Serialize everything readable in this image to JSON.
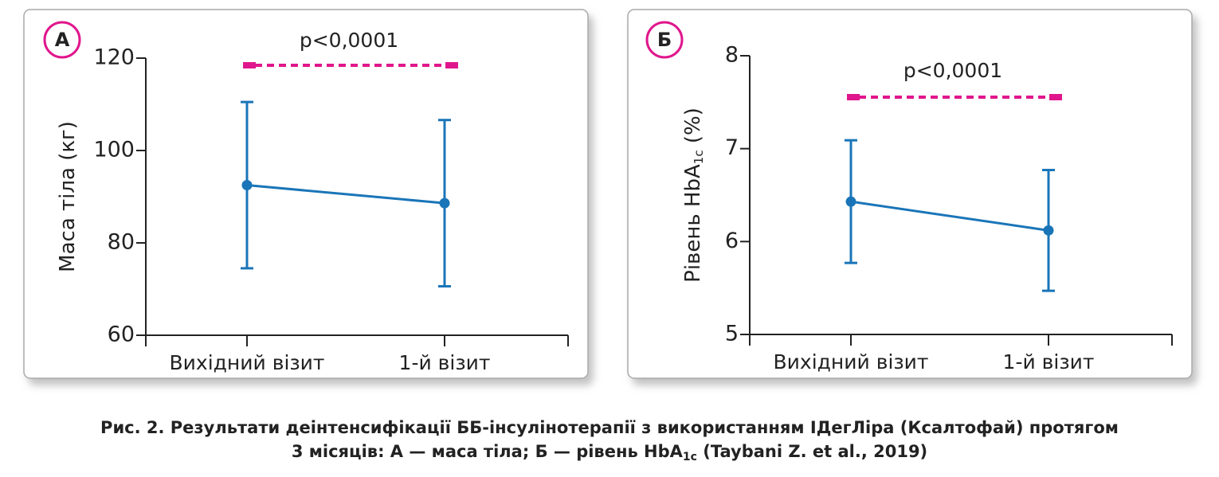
{
  "chart_data": [
    {
      "type": "line",
      "panel": "А",
      "annotation": "p<0,0001",
      "ylabel": [
        "Маса тіла (кг)"
      ],
      "categories": [
        "Вихідний візит",
        "1-й візит"
      ],
      "values": [
        92.5,
        88.6
      ],
      "errors": [
        18,
        18
      ],
      "color": "#1a75b8",
      "ylim": [
        60,
        120
      ],
      "yticks": [
        60,
        80,
        100,
        120
      ]
    },
    {
      "type": "line",
      "panel": "Б",
      "annotation": "p<0,0001",
      "ylabel": [
        "Рівень HbA",
        "1c",
        " (%)"
      ],
      "categories": [
        "Вихідний візит",
        "1-й візит"
      ],
      "values": [
        6.43,
        6.12
      ],
      "errors": [
        0.66,
        0.65
      ],
      "color": "#1a75b8",
      "ylim": [
        5,
        8
      ],
      "yticks": [
        5,
        6,
        7,
        8
      ]
    }
  ],
  "caption": {
    "line1": "Рис. 2. Результати деінтенсифікації ББ-інсулінотерапії з використанням ІДегЛіра (Ксалтофай) протягом",
    "line2": [
      "3 місяців: А — маса тіла; Б — рівень HbA",
      "1c",
      " (Taybani Z. et al., 2019)"
    ]
  }
}
